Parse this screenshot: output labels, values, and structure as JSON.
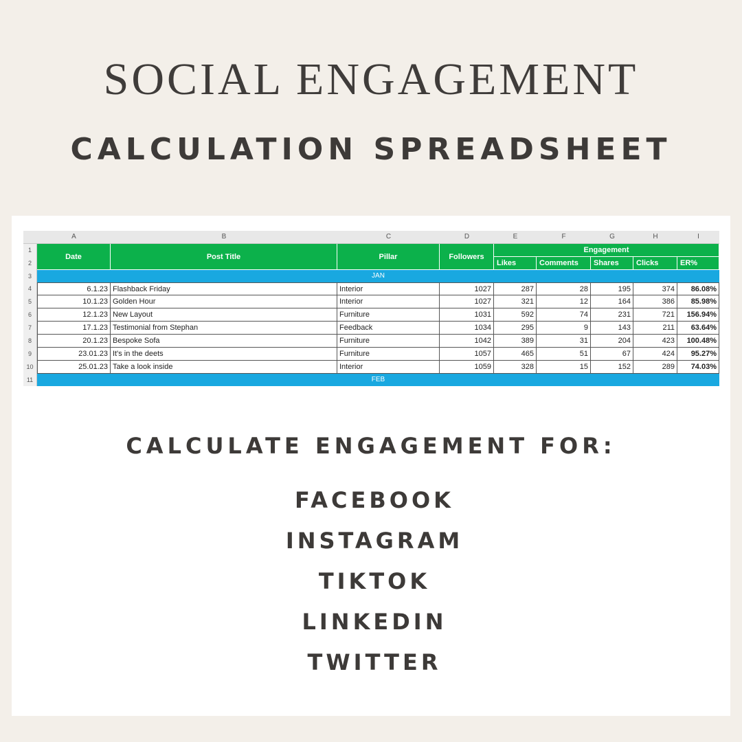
{
  "title_line1": "SOCIAL ENGAGEMENT",
  "title_line2": "CALCULATION SPREADSHEET",
  "sheet": {
    "column_letters": [
      "A",
      "B",
      "C",
      "D",
      "E",
      "F",
      "G",
      "H",
      "I"
    ],
    "row_numbers": [
      "1",
      "2",
      "3",
      "4",
      "5",
      "6",
      "7",
      "8",
      "9",
      "10",
      "11"
    ],
    "headers": {
      "date": "Date",
      "post_title": "Post Title",
      "pillar": "Pillar",
      "followers": "Followers",
      "engagement": "Engagement",
      "likes": "Likes",
      "comments": "Comments",
      "shares": "Shares",
      "clicks": "Clicks",
      "er": "ER%"
    },
    "month_jan": "JAN",
    "month_feb": "FEB",
    "rows": [
      {
        "date": "6.1.23",
        "title": "Flashback Friday",
        "pillar": "Interior",
        "followers": "1027",
        "likes": "287",
        "comments": "28",
        "shares": "195",
        "clicks": "374",
        "er": "86.08%"
      },
      {
        "date": "10.1.23",
        "title": "Golden Hour",
        "pillar": "Interior",
        "followers": "1027",
        "likes": "321",
        "comments": "12",
        "shares": "164",
        "clicks": "386",
        "er": "85.98%"
      },
      {
        "date": "12.1.23",
        "title": "New Layout",
        "pillar": "Furniture",
        "followers": "1031",
        "likes": "592",
        "comments": "74",
        "shares": "231",
        "clicks": "721",
        "er": "156.94%"
      },
      {
        "date": "17.1.23",
        "title": "Testimonial from Stephan",
        "pillar": "Feedback",
        "followers": "1034",
        "likes": "295",
        "comments": "9",
        "shares": "143",
        "clicks": "211",
        "er": "63.64%"
      },
      {
        "date": "20.1.23",
        "title": "Bespoke Sofa",
        "pillar": "Furniture",
        "followers": "1042",
        "likes": "389",
        "comments": "31",
        "shares": "204",
        "clicks": "423",
        "er": "100.48%"
      },
      {
        "date": "23.01.23",
        "title": "It's in the deets",
        "pillar": "Furniture",
        "followers": "1057",
        "likes": "465",
        "comments": "51",
        "shares": "67",
        "clicks": "424",
        "er": "95.27%"
      },
      {
        "date": "25.01.23",
        "title": "Take a look inside",
        "pillar": "Interior",
        "followers": "1059",
        "likes": "328",
        "comments": "15",
        "shares": "152",
        "clicks": "289",
        "er": "74.03%"
      }
    ]
  },
  "calculate_heading": "CALCULATE ENGAGEMENT FOR:",
  "platforms": [
    "FACEBOOK",
    "INSTAGRAM",
    "TIKTOK",
    "LINKEDIN",
    "TWITTER"
  ],
  "colors": {
    "background": "#f3efe9",
    "header_green": "#0cb14b",
    "month_band_blue": "#19a8e0",
    "text_dark": "#3d3a38"
  }
}
